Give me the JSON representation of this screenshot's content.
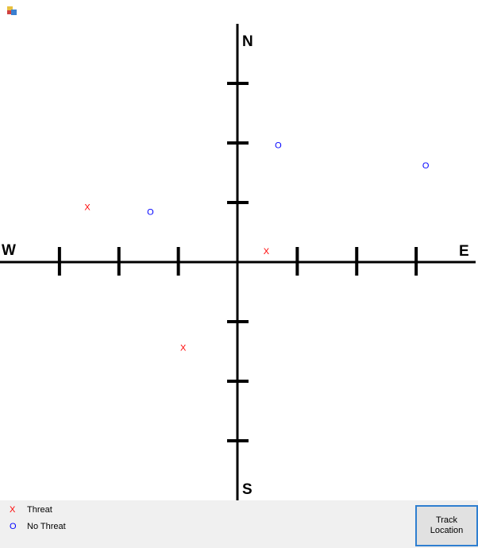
{
  "compass": {
    "north": "N",
    "south": "S",
    "west": "W",
    "east": "E"
  },
  "plot": {
    "xlim": [
      -4,
      4
    ],
    "ylim": [
      -4,
      4
    ],
    "xticks": [
      -3,
      -2,
      -1,
      1,
      2,
      3
    ],
    "yticks": [
      -3,
      -2,
      -1,
      1,
      2,
      3
    ],
    "points": [
      {
        "symbol": "X",
        "color": "#ff0000",
        "x": -2.53,
        "y": 0.91
      },
      {
        "symbol": "O",
        "color": "#0000ff",
        "x": -1.47,
        "y": 0.83
      },
      {
        "symbol": "O",
        "color": "#0000ff",
        "x": 0.68,
        "y": 1.95
      },
      {
        "symbol": "O",
        "color": "#0000ff",
        "x": 3.16,
        "y": 1.61
      },
      {
        "symbol": "X",
        "color": "#ff0000",
        "x": 0.48,
        "y": 0.17
      },
      {
        "symbol": "X",
        "color": "#ff0000",
        "x": -0.92,
        "y": -1.45
      }
    ]
  },
  "legend": [
    {
      "symbol": "X",
      "color": "#ff0000",
      "label": "Threat"
    },
    {
      "symbol": "O",
      "color": "#0000ff",
      "label": "No Threat"
    }
  ],
  "button": {
    "label": "Track Location"
  }
}
